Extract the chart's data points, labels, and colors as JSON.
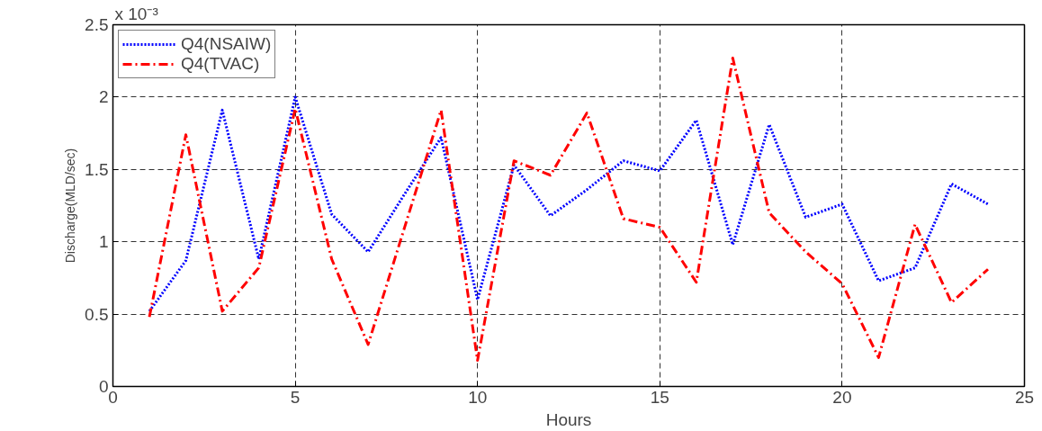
{
  "chart_data": {
    "type": "line",
    "xlabel": "Hours",
    "ylabel": "Discharge(MLD/sec)",
    "annotations": [
      "x 10⁻³"
    ],
    "x": [
      1,
      2,
      3,
      4,
      5,
      6,
      7,
      8,
      9,
      10,
      11,
      12,
      13,
      14,
      15,
      16,
      17,
      18,
      19,
      20,
      21,
      22,
      23,
      24
    ],
    "series": [
      {
        "name": "Q4(NSAIW)",
        "color": "#0000ff",
        "line_style": "dotted",
        "values": [
          0.52,
          0.87,
          1.91,
          0.88,
          2.0,
          1.19,
          0.93,
          1.33,
          1.72,
          0.6,
          1.53,
          1.18,
          1.36,
          1.56,
          1.49,
          1.84,
          0.98,
          1.81,
          1.17,
          1.26,
          0.73,
          0.82,
          1.4,
          1.26
        ]
      },
      {
        "name": "Q4(TVAC)",
        "color": "#ff0000",
        "line_style": "dashdot",
        "values": [
          0.48,
          1.74,
          0.52,
          0.82,
          1.92,
          0.88,
          0.29,
          1.1,
          1.91,
          0.18,
          1.56,
          1.46,
          1.89,
          1.16,
          1.1,
          0.72,
          2.27,
          1.2,
          0.93,
          0.71,
          0.2,
          1.12,
          0.58,
          0.81
        ]
      }
    ],
    "xlim": [
      0,
      25
    ],
    "xticks": [
      0,
      5,
      10,
      15,
      20,
      25
    ],
    "ylim": [
      0,
      2.5
    ],
    "yticks": [
      0,
      0.5,
      1,
      1.5,
      2,
      2.5
    ],
    "grid": true,
    "legend": "top left",
    "marker": "none"
  }
}
